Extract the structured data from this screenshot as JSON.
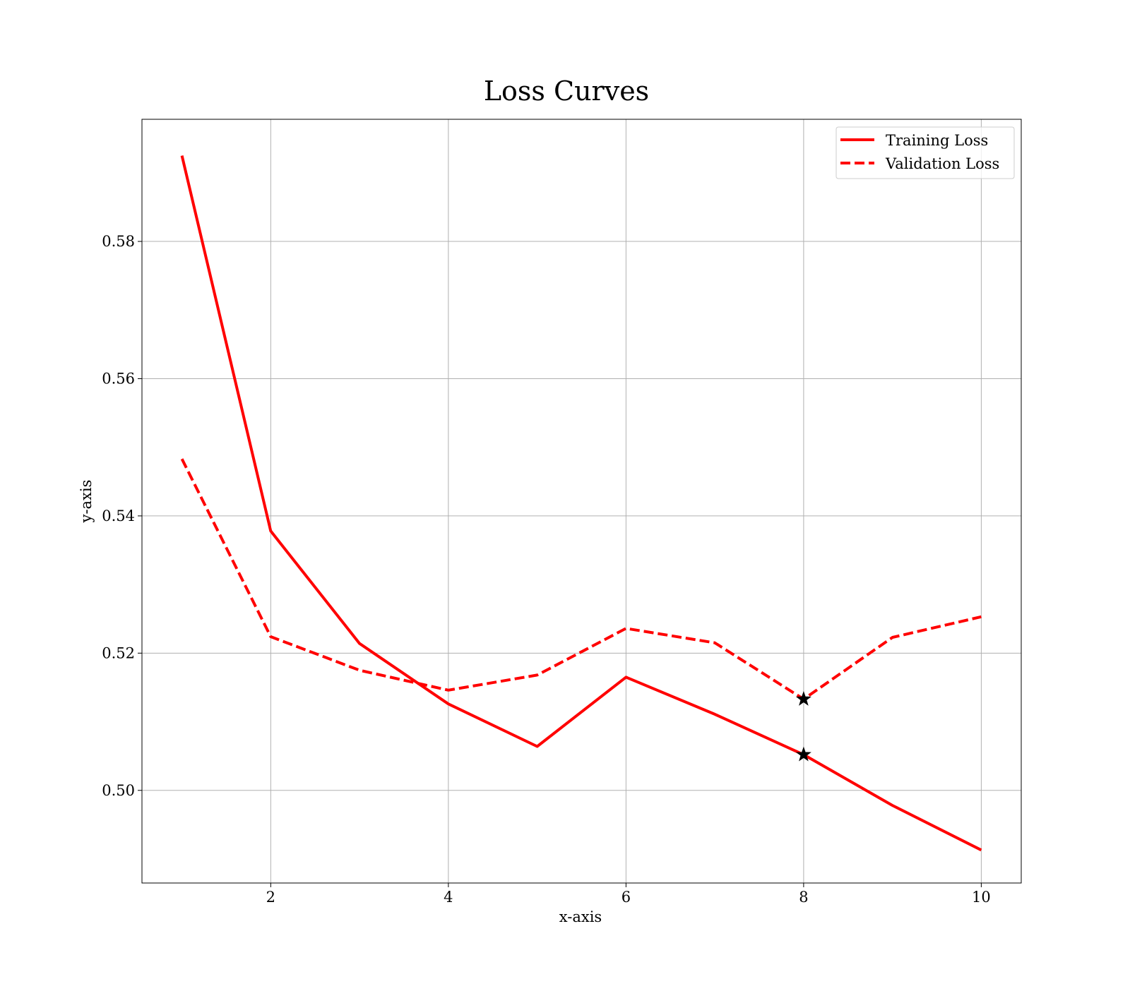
{
  "chart_data": {
    "type": "line",
    "title": "Loss Curves",
    "xlabel": "x-axis",
    "ylabel": "y-axis",
    "xlim": [
      0.55,
      10.45
    ],
    "ylim": [
      0.4865,
      0.5978
    ],
    "xticks": [
      2,
      4,
      6,
      8,
      10
    ],
    "xtick_labels": [
      "2",
      "4",
      "6",
      "8",
      "10"
    ],
    "yticks": [
      0.5,
      0.52,
      0.54,
      0.56,
      0.58
    ],
    "ytick_labels": [
      "0.50",
      "0.52",
      "0.54",
      "0.56",
      "0.58"
    ],
    "grid": true,
    "legend_position": "top-right",
    "x": [
      1,
      2,
      3,
      4,
      5,
      6,
      7,
      8,
      9,
      10
    ],
    "series": [
      {
        "name": "Training Loss",
        "style": "solid",
        "color": "#ff0000",
        "values": [
          0.5925,
          0.5378,
          0.5214,
          0.5126,
          0.5064,
          0.5165,
          0.5111,
          0.5052,
          0.4978,
          0.4913
        ]
      },
      {
        "name": "Validation Loss",
        "style": "dashed",
        "color": "#ff0000",
        "values": [
          0.5483,
          0.5224,
          0.5175,
          0.5146,
          0.5168,
          0.5236,
          0.5215,
          0.5133,
          0.5223,
          0.5253
        ]
      }
    ],
    "markers": [
      {
        "series": "Training Loss",
        "x": 8,
        "y": 0.5052,
        "shape": "star",
        "color": "#000000"
      },
      {
        "series": "Validation Loss",
        "x": 8,
        "y": 0.5133,
        "shape": "star",
        "color": "#000000"
      }
    ]
  }
}
